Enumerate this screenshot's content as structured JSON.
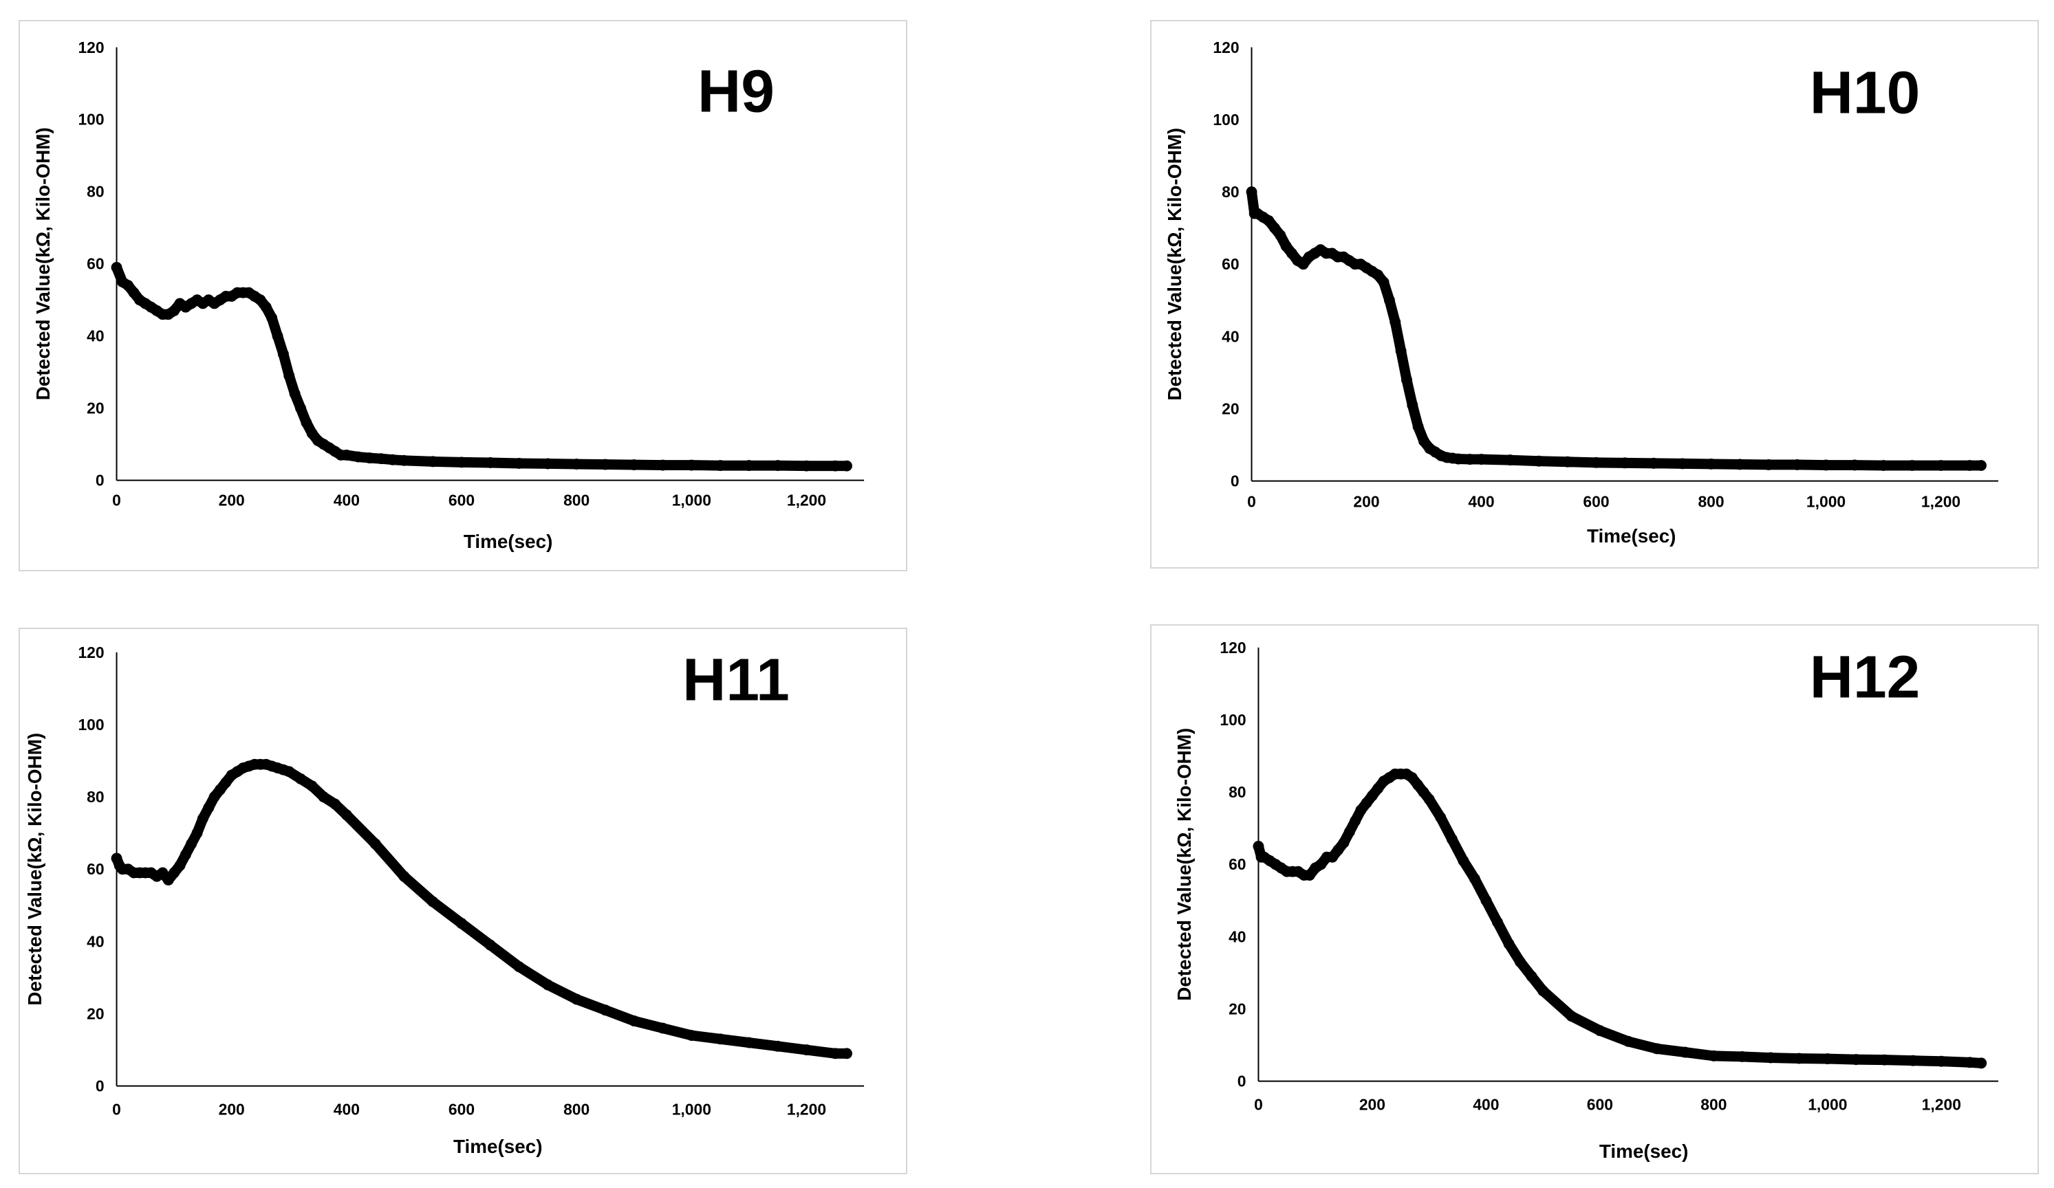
{
  "chart_data": [
    {
      "type": "scatter",
      "title": "H9",
      "xlabel": "Time(sec)",
      "ylabel": "Detected Value(kΩ, Kilo-OHM)",
      "xlim": [
        0,
        1300
      ],
      "ylim": [
        0,
        120
      ],
      "xticks": [
        "0",
        "200",
        "400",
        "600",
        "800",
        "1,000",
        "1,200"
      ],
      "yticks": [
        "0",
        "20",
        "40",
        "60",
        "80",
        "100",
        "120"
      ],
      "color": "#000000",
      "x": [
        0,
        10,
        20,
        30,
        40,
        50,
        60,
        70,
        80,
        90,
        100,
        110,
        120,
        130,
        140,
        150,
        160,
        170,
        180,
        190,
        200,
        210,
        220,
        230,
        240,
        250,
        260,
        270,
        280,
        290,
        300,
        310,
        320,
        330,
        340,
        350,
        360,
        370,
        380,
        390,
        400,
        420,
        440,
        460,
        480,
        500,
        550,
        600,
        650,
        700,
        750,
        800,
        850,
        900,
        950,
        1000,
        1050,
        1100,
        1150,
        1200,
        1250,
        1270
      ],
      "y": [
        59,
        55,
        54,
        52,
        50,
        49,
        48,
        47,
        46,
        46,
        47,
        49,
        48,
        49,
        50,
        49,
        50,
        49,
        50,
        51,
        51,
        52,
        52,
        52,
        51,
        50,
        48,
        45,
        40,
        35,
        29,
        24,
        20,
        16,
        13,
        11,
        10,
        9,
        8,
        7,
        7,
        6.5,
        6.2,
        6,
        5.7,
        5.5,
        5.2,
        5,
        4.9,
        4.7,
        4.6,
        4.5,
        4.4,
        4.3,
        4.2,
        4.2,
        4.1,
        4.1,
        4.1,
        4,
        4,
        4
      ]
    },
    {
      "type": "scatter",
      "title": "H10",
      "xlabel": "Time(sec)",
      "ylabel": "Detected Value(kΩ, Kilo-OHM)",
      "xlim": [
        0,
        1300
      ],
      "ylim": [
        0,
        120
      ],
      "xticks": [
        "0",
        "200",
        "400",
        "600",
        "800",
        "1,000",
        "1,200"
      ],
      "yticks": [
        "0",
        "20",
        "40",
        "60",
        "80",
        "100",
        "120"
      ],
      "color": "#000000",
      "x": [
        0,
        5,
        10,
        20,
        30,
        40,
        50,
        60,
        70,
        80,
        90,
        100,
        110,
        120,
        130,
        140,
        150,
        160,
        170,
        180,
        190,
        200,
        210,
        220,
        230,
        240,
        250,
        260,
        270,
        280,
        290,
        300,
        310,
        320,
        330,
        340,
        350,
        360,
        380,
        400,
        450,
        500,
        550,
        600,
        650,
        700,
        750,
        800,
        850,
        900,
        950,
        1000,
        1050,
        1100,
        1150,
        1200,
        1250,
        1270
      ],
      "y": [
        80,
        74,
        74,
        73,
        72,
        70,
        68,
        65,
        63,
        61,
        60,
        62,
        63,
        64,
        63,
        63,
        62,
        62,
        61,
        60,
        60,
        59,
        58,
        57,
        55,
        50,
        44,
        36,
        28,
        21,
        15,
        11,
        9,
        8,
        7,
        6.5,
        6.3,
        6.1,
        6,
        6,
        5.8,
        5.5,
        5.3,
        5.1,
        5,
        4.9,
        4.8,
        4.7,
        4.6,
        4.5,
        4.5,
        4.4,
        4.4,
        4.3,
        4.3,
        4.3,
        4.3,
        4.3
      ]
    },
    {
      "type": "scatter",
      "title": "H11",
      "xlabel": "Time(sec)",
      "ylabel": "Detected Value(kΩ, Kilo-OHM)",
      "xlim": [
        0,
        1300
      ],
      "ylim": [
        0,
        120
      ],
      "xticks": [
        "0",
        "200",
        "400",
        "600",
        "800",
        "1,000",
        "1,200"
      ],
      "yticks": [
        "0",
        "20",
        "40",
        "60",
        "80",
        "100",
        "120"
      ],
      "color": "#000000",
      "x": [
        0,
        5,
        10,
        20,
        30,
        40,
        50,
        60,
        70,
        80,
        90,
        100,
        110,
        120,
        130,
        140,
        150,
        160,
        170,
        180,
        190,
        200,
        210,
        220,
        230,
        240,
        250,
        260,
        270,
        280,
        290,
        300,
        320,
        340,
        360,
        380,
        400,
        450,
        500,
        550,
        600,
        650,
        700,
        750,
        800,
        850,
        900,
        950,
        1000,
        1050,
        1100,
        1150,
        1200,
        1250,
        1270
      ],
      "y": [
        63,
        61,
        60,
        60,
        59,
        59,
        59,
        59,
        58,
        59,
        57,
        59,
        61,
        64,
        67,
        70,
        74,
        77,
        80,
        82,
        84,
        86,
        87,
        88,
        88.5,
        89,
        89,
        89,
        88.5,
        88,
        87.5,
        87,
        85,
        83,
        80,
        78,
        75,
        67,
        58,
        51,
        45,
        39,
        33,
        28,
        24,
        21,
        18,
        16,
        14,
        13,
        12,
        11,
        10,
        9,
        9
      ]
    },
    {
      "type": "scatter",
      "title": "H12",
      "xlabel": "Time(sec)",
      "ylabel": "Detected Value(kΩ, Kilo-OHM)",
      "xlim": [
        0,
        1300
      ],
      "ylim": [
        0,
        120
      ],
      "xticks": [
        "0",
        "200",
        "400",
        "600",
        "800",
        "1,000",
        "1,200"
      ],
      "yticks": [
        "0",
        "20",
        "40",
        "60",
        "80",
        "100",
        "120"
      ],
      "color": "#000000",
      "x": [
        0,
        5,
        10,
        20,
        30,
        40,
        50,
        60,
        70,
        80,
        90,
        100,
        110,
        120,
        130,
        140,
        150,
        160,
        170,
        180,
        190,
        200,
        210,
        220,
        230,
        240,
        250,
        260,
        270,
        280,
        290,
        300,
        320,
        340,
        360,
        380,
        400,
        420,
        440,
        460,
        480,
        500,
        550,
        600,
        650,
        700,
        750,
        800,
        850,
        900,
        950,
        1000,
        1050,
        1100,
        1150,
        1200,
        1250,
        1270
      ],
      "y": [
        65,
        62,
        62,
        61,
        60,
        59,
        58,
        58,
        58,
        57,
        57,
        59,
        60,
        62,
        62,
        64,
        66,
        69,
        72,
        75,
        77,
        79,
        81,
        83,
        84,
        85,
        85,
        85,
        84,
        82,
        80,
        78,
        73,
        67,
        61,
        56,
        50,
        44,
        38,
        33,
        29,
        25,
        18,
        14,
        11,
        9,
        8,
        7,
        6.8,
        6.5,
        6.3,
        6.2,
        6,
        5.9,
        5.7,
        5.5,
        5.2,
        5
      ]
    }
  ]
}
